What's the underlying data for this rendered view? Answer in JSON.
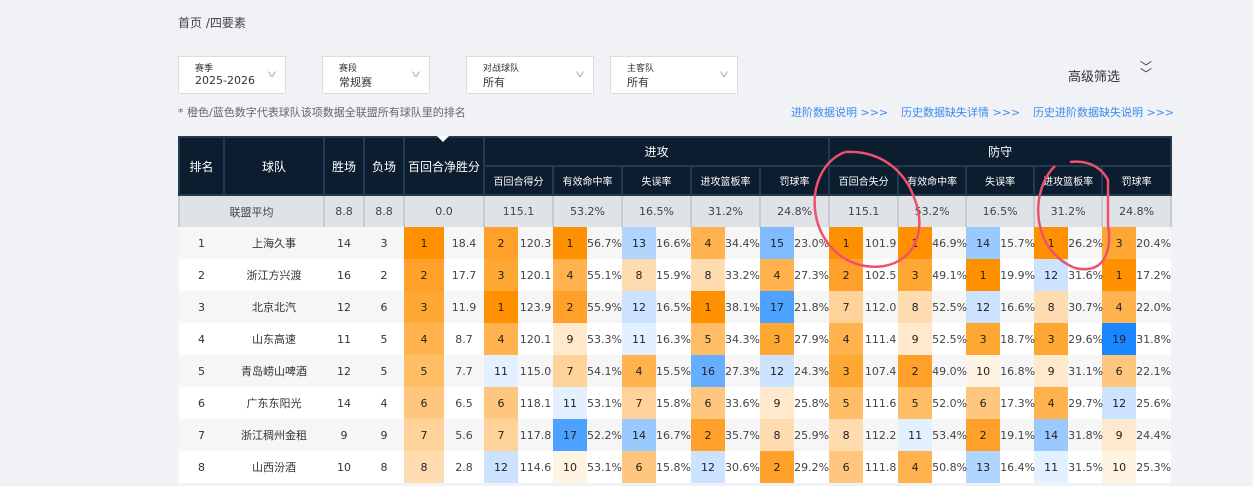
{
  "breadcrumb": "首页 /四要素",
  "filters": [
    {
      "label": "赛季",
      "value": "2025-2026"
    },
    {
      "label": "赛段",
      "value": "常规赛"
    },
    {
      "label": "对战球队",
      "value": "所有"
    },
    {
      "label": "主客队",
      "value": "所有"
    }
  ],
  "note": "* 橙色/蓝色数字代表球队该项数据全联盟所有球队里的排名",
  "advanced_filter": "高级筛选",
  "links": [
    "进阶数据说明 >>>",
    "历史数据缺失详情 >>>",
    "历史进阶数据缺失说明 >>>"
  ],
  "colors": {
    "header_bg": "#0b1d2e",
    "link": "#3d8cf0",
    "annotation": "#f0506e",
    "rank_scale": {
      "1": "#ff9100",
      "2": "#ffa02a",
      "3": "#ffa733",
      "4": "#ffb24d",
      "5": "#ffbd66",
      "6": "#ffc680",
      "7": "#ffd29a",
      "8": "#ffdcb0",
      "9": "#ffe8cc",
      "10": "#fff3e3",
      "11": "#e3f0ff",
      "12": "#cce3ff",
      "13": "#b0d5ff",
      "14": "#99c9ff",
      "15": "#80bbff",
      "16": "#66aeff",
      "17": "#4da1ff",
      "18": "#3393ff",
      "19": "#1a86ff",
      "20": "#0079ff"
    }
  },
  "table": {
    "headers": {
      "rank": "排名",
      "team": "球队",
      "wins": "胜场",
      "losses": "负场",
      "net": "百回合净胜分",
      "offense": "进攻",
      "defense": "防守"
    },
    "offense_cols": [
      "百回合得分",
      "有效命中率",
      "失误率",
      "进攻篮板率",
      "罚球率"
    ],
    "defense_cols": [
      "百回合失分",
      "有效命中率",
      "失误率",
      "进攻篮板率",
      "罚球率"
    ],
    "average": {
      "label": "联盟平均",
      "wins": "8.8",
      "losses": "8.8",
      "net": "0.0",
      "offense": [
        "115.1",
        "53.2%",
        "16.5%",
        "31.2%",
        "24.8%"
      ],
      "defense": [
        "115.1",
        "53.2%",
        "16.5%",
        "31.2%",
        "24.8%"
      ]
    },
    "rows": [
      {
        "rank": "1",
        "team": "上海久事",
        "wins": "14",
        "losses": "3",
        "net": [
          "1",
          "18.4"
        ],
        "offense": [
          [
            "2",
            "120.3"
          ],
          [
            "1",
            "56.7%"
          ],
          [
            "13",
            "16.6%"
          ],
          [
            "4",
            "34.4%"
          ],
          [
            "15",
            "23.0%"
          ]
        ],
        "defense": [
          [
            "1",
            "101.9"
          ],
          [
            "1",
            "46.9%"
          ],
          [
            "14",
            "15.7%"
          ],
          [
            "1",
            "26.2%"
          ],
          [
            "3",
            "20.4%"
          ]
        ]
      },
      {
        "rank": "2",
        "team": "浙江方兴渡",
        "wins": "16",
        "losses": "2",
        "net": [
          "2",
          "17.7"
        ],
        "offense": [
          [
            "3",
            "120.1"
          ],
          [
            "4",
            "55.1%"
          ],
          [
            "8",
            "15.9%"
          ],
          [
            "8",
            "33.2%"
          ],
          [
            "4",
            "27.3%"
          ]
        ],
        "defense": [
          [
            "2",
            "102.5"
          ],
          [
            "3",
            "49.1%"
          ],
          [
            "1",
            "19.9%"
          ],
          [
            "12",
            "31.6%"
          ],
          [
            "1",
            "17.2%"
          ]
        ]
      },
      {
        "rank": "3",
        "team": "北京北汽",
        "wins": "12",
        "losses": "6",
        "net": [
          "3",
          "11.9"
        ],
        "offense": [
          [
            "1",
            "123.9"
          ],
          [
            "2",
            "55.9%"
          ],
          [
            "12",
            "16.5%"
          ],
          [
            "1",
            "38.1%"
          ],
          [
            "17",
            "21.8%"
          ]
        ],
        "defense": [
          [
            "7",
            "112.0"
          ],
          [
            "8",
            "52.5%"
          ],
          [
            "12",
            "16.6%"
          ],
          [
            "8",
            "30.7%"
          ],
          [
            "4",
            "22.0%"
          ]
        ]
      },
      {
        "rank": "4",
        "team": "山东高速",
        "wins": "11",
        "losses": "5",
        "net": [
          "4",
          "8.7"
        ],
        "offense": [
          [
            "4",
            "120.1"
          ],
          [
            "9",
            "53.3%"
          ],
          [
            "11",
            "16.3%"
          ],
          [
            "5",
            "34.3%"
          ],
          [
            "3",
            "27.9%"
          ]
        ],
        "defense": [
          [
            "4",
            "111.4"
          ],
          [
            "9",
            "52.5%"
          ],
          [
            "3",
            "18.7%"
          ],
          [
            "3",
            "29.6%"
          ],
          [
            "19",
            "31.8%"
          ]
        ]
      },
      {
        "rank": "5",
        "team": "青岛崂山啤酒",
        "wins": "12",
        "losses": "5",
        "net": [
          "5",
          "7.7"
        ],
        "offense": [
          [
            "11",
            "115.0"
          ],
          [
            "7",
            "54.1%"
          ],
          [
            "4",
            "15.5%"
          ],
          [
            "16",
            "27.3%"
          ],
          [
            "12",
            "24.3%"
          ]
        ],
        "defense": [
          [
            "3",
            "107.4"
          ],
          [
            "2",
            "49.0%"
          ],
          [
            "10",
            "16.8%"
          ],
          [
            "9",
            "31.1%"
          ],
          [
            "6",
            "22.1%"
          ]
        ]
      },
      {
        "rank": "6",
        "team": "广东东阳光",
        "wins": "14",
        "losses": "4",
        "net": [
          "6",
          "6.5"
        ],
        "offense": [
          [
            "6",
            "118.1"
          ],
          [
            "11",
            "53.1%"
          ],
          [
            "7",
            "15.8%"
          ],
          [
            "6",
            "33.6%"
          ],
          [
            "9",
            "25.8%"
          ]
        ],
        "defense": [
          [
            "5",
            "111.6"
          ],
          [
            "5",
            "52.0%"
          ],
          [
            "6",
            "17.3%"
          ],
          [
            "4",
            "29.7%"
          ],
          [
            "12",
            "25.6%"
          ]
        ]
      },
      {
        "rank": "7",
        "team": "浙江稠州金租",
        "wins": "9",
        "losses": "9",
        "net": [
          "7",
          "5.6"
        ],
        "offense": [
          [
            "7",
            "117.8"
          ],
          [
            "17",
            "52.2%"
          ],
          [
            "14",
            "16.7%"
          ],
          [
            "2",
            "35.7%"
          ],
          [
            "8",
            "25.9%"
          ]
        ],
        "defense": [
          [
            "8",
            "112.2"
          ],
          [
            "11",
            "53.4%"
          ],
          [
            "2",
            "19.1%"
          ],
          [
            "14",
            "31.8%"
          ],
          [
            "9",
            "24.4%"
          ]
        ]
      },
      {
        "rank": "8",
        "team": "山西汾酒",
        "wins": "10",
        "losses": "8",
        "net": [
          "8",
          "2.8"
        ],
        "offense": [
          [
            "12",
            "114.6"
          ],
          [
            "10",
            "53.1%"
          ],
          [
            "6",
            "15.8%"
          ],
          [
            "12",
            "30.6%"
          ],
          [
            "2",
            "29.2%"
          ]
        ],
        "defense": [
          [
            "6",
            "111.8"
          ],
          [
            "4",
            "50.8%"
          ],
          [
            "13",
            "16.4%"
          ],
          [
            "11",
            "31.5%"
          ],
          [
            "10",
            "25.3%"
          ]
        ]
      }
    ]
  }
}
